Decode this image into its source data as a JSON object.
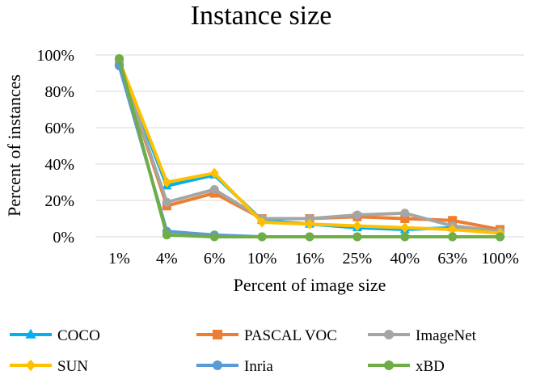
{
  "chart_data": {
    "type": "line",
    "title": "Instance size",
    "xlabel": "Percent of image size",
    "ylabel": "Percent of instances",
    "categories": [
      "1%",
      "4%",
      "6%",
      "10%",
      "16%",
      "25%",
      "40%",
      "63%",
      "100%"
    ],
    "ylim": [
      0,
      100
    ],
    "yticks": [
      0,
      20,
      40,
      60,
      80,
      100
    ],
    "ytick_labels": [
      "0%",
      "20%",
      "40%",
      "60%",
      "80%",
      "100%"
    ],
    "grid": "horizontal",
    "legend": "bottom",
    "series": [
      {
        "name": "COCO",
        "color": "#00B0F0",
        "marker": "triangle",
        "values": [
          96,
          28,
          34,
          9,
          7,
          5,
          4,
          5,
          2
        ]
      },
      {
        "name": "PASCAL VOC",
        "color": "#ED7D31",
        "marker": "square",
        "values": [
          96,
          17,
          24,
          10,
          10,
          11,
          10,
          9,
          4
        ]
      },
      {
        "name": "ImageNet",
        "color": "#A5A5A5",
        "marker": "circle",
        "values": [
          96,
          19,
          26,
          10,
          10,
          12,
          13,
          6,
          3
        ]
      },
      {
        "name": "SUN",
        "color": "#FFC000",
        "marker": "diamond",
        "values": [
          97,
          30,
          35,
          8,
          7,
          6,
          5,
          4,
          2
        ]
      },
      {
        "name": "Inria",
        "color": "#5B9BD5",
        "marker": "circle",
        "values": [
          94,
          3,
          1,
          0,
          0,
          0,
          0,
          0,
          0
        ]
      },
      {
        "name": "xBD",
        "color": "#70AD47",
        "marker": "circle",
        "values": [
          98,
          1,
          0,
          0,
          0,
          0,
          0,
          0,
          0
        ]
      }
    ]
  }
}
